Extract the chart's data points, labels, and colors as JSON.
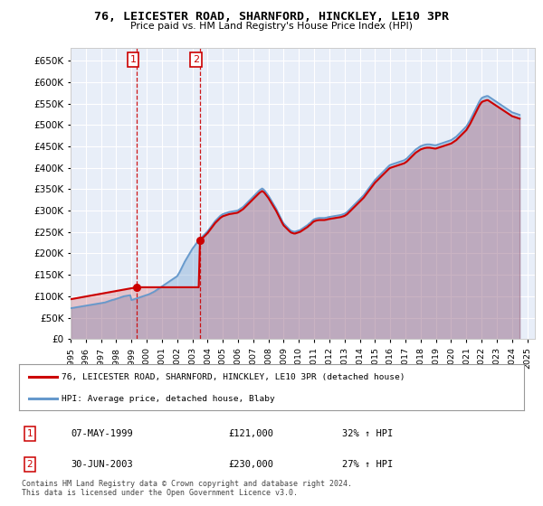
{
  "title": "76, LEICESTER ROAD, SHARNFORD, HINCKLEY, LE10 3PR",
  "subtitle": "Price paid vs. HM Land Registry's House Price Index (HPI)",
  "ylim": [
    0,
    680000
  ],
  "yticks": [
    0,
    50000,
    100000,
    150000,
    200000,
    250000,
    300000,
    350000,
    400000,
    450000,
    500000,
    550000,
    600000,
    650000
  ],
  "background_color": "#e8eef8",
  "grid_color": "#ffffff",
  "legend_label_red": "76, LEICESTER ROAD, SHARNFORD, HINCKLEY, LE10 3PR (detached house)",
  "legend_label_blue": "HPI: Average price, detached house, Blaby",
  "sale1_date": 1999.35,
  "sale1_price": 121000,
  "sale2_date": 2003.49,
  "sale2_price": 230000,
  "red_color": "#cc0000",
  "blue_color": "#6699cc",
  "table_entry1": [
    "1",
    "07-MAY-1999",
    "£121,000",
    "32% ↑ HPI"
  ],
  "table_entry2": [
    "2",
    "30-JUN-2003",
    "£230,000",
    "27% ↑ HPI"
  ],
  "footer": "Contains HM Land Registry data © Crown copyright and database right 2024.\nThis data is licensed under the Open Government Licence v3.0.",
  "xmin": 1995.0,
  "xmax": 2025.5,
  "xtick_years": [
    1995,
    1996,
    1997,
    1998,
    1999,
    2000,
    2001,
    2002,
    2003,
    2004,
    2005,
    2006,
    2007,
    2008,
    2009,
    2010,
    2011,
    2012,
    2013,
    2014,
    2015,
    2016,
    2017,
    2018,
    2019,
    2020,
    2021,
    2022,
    2023,
    2024,
    2025
  ]
}
